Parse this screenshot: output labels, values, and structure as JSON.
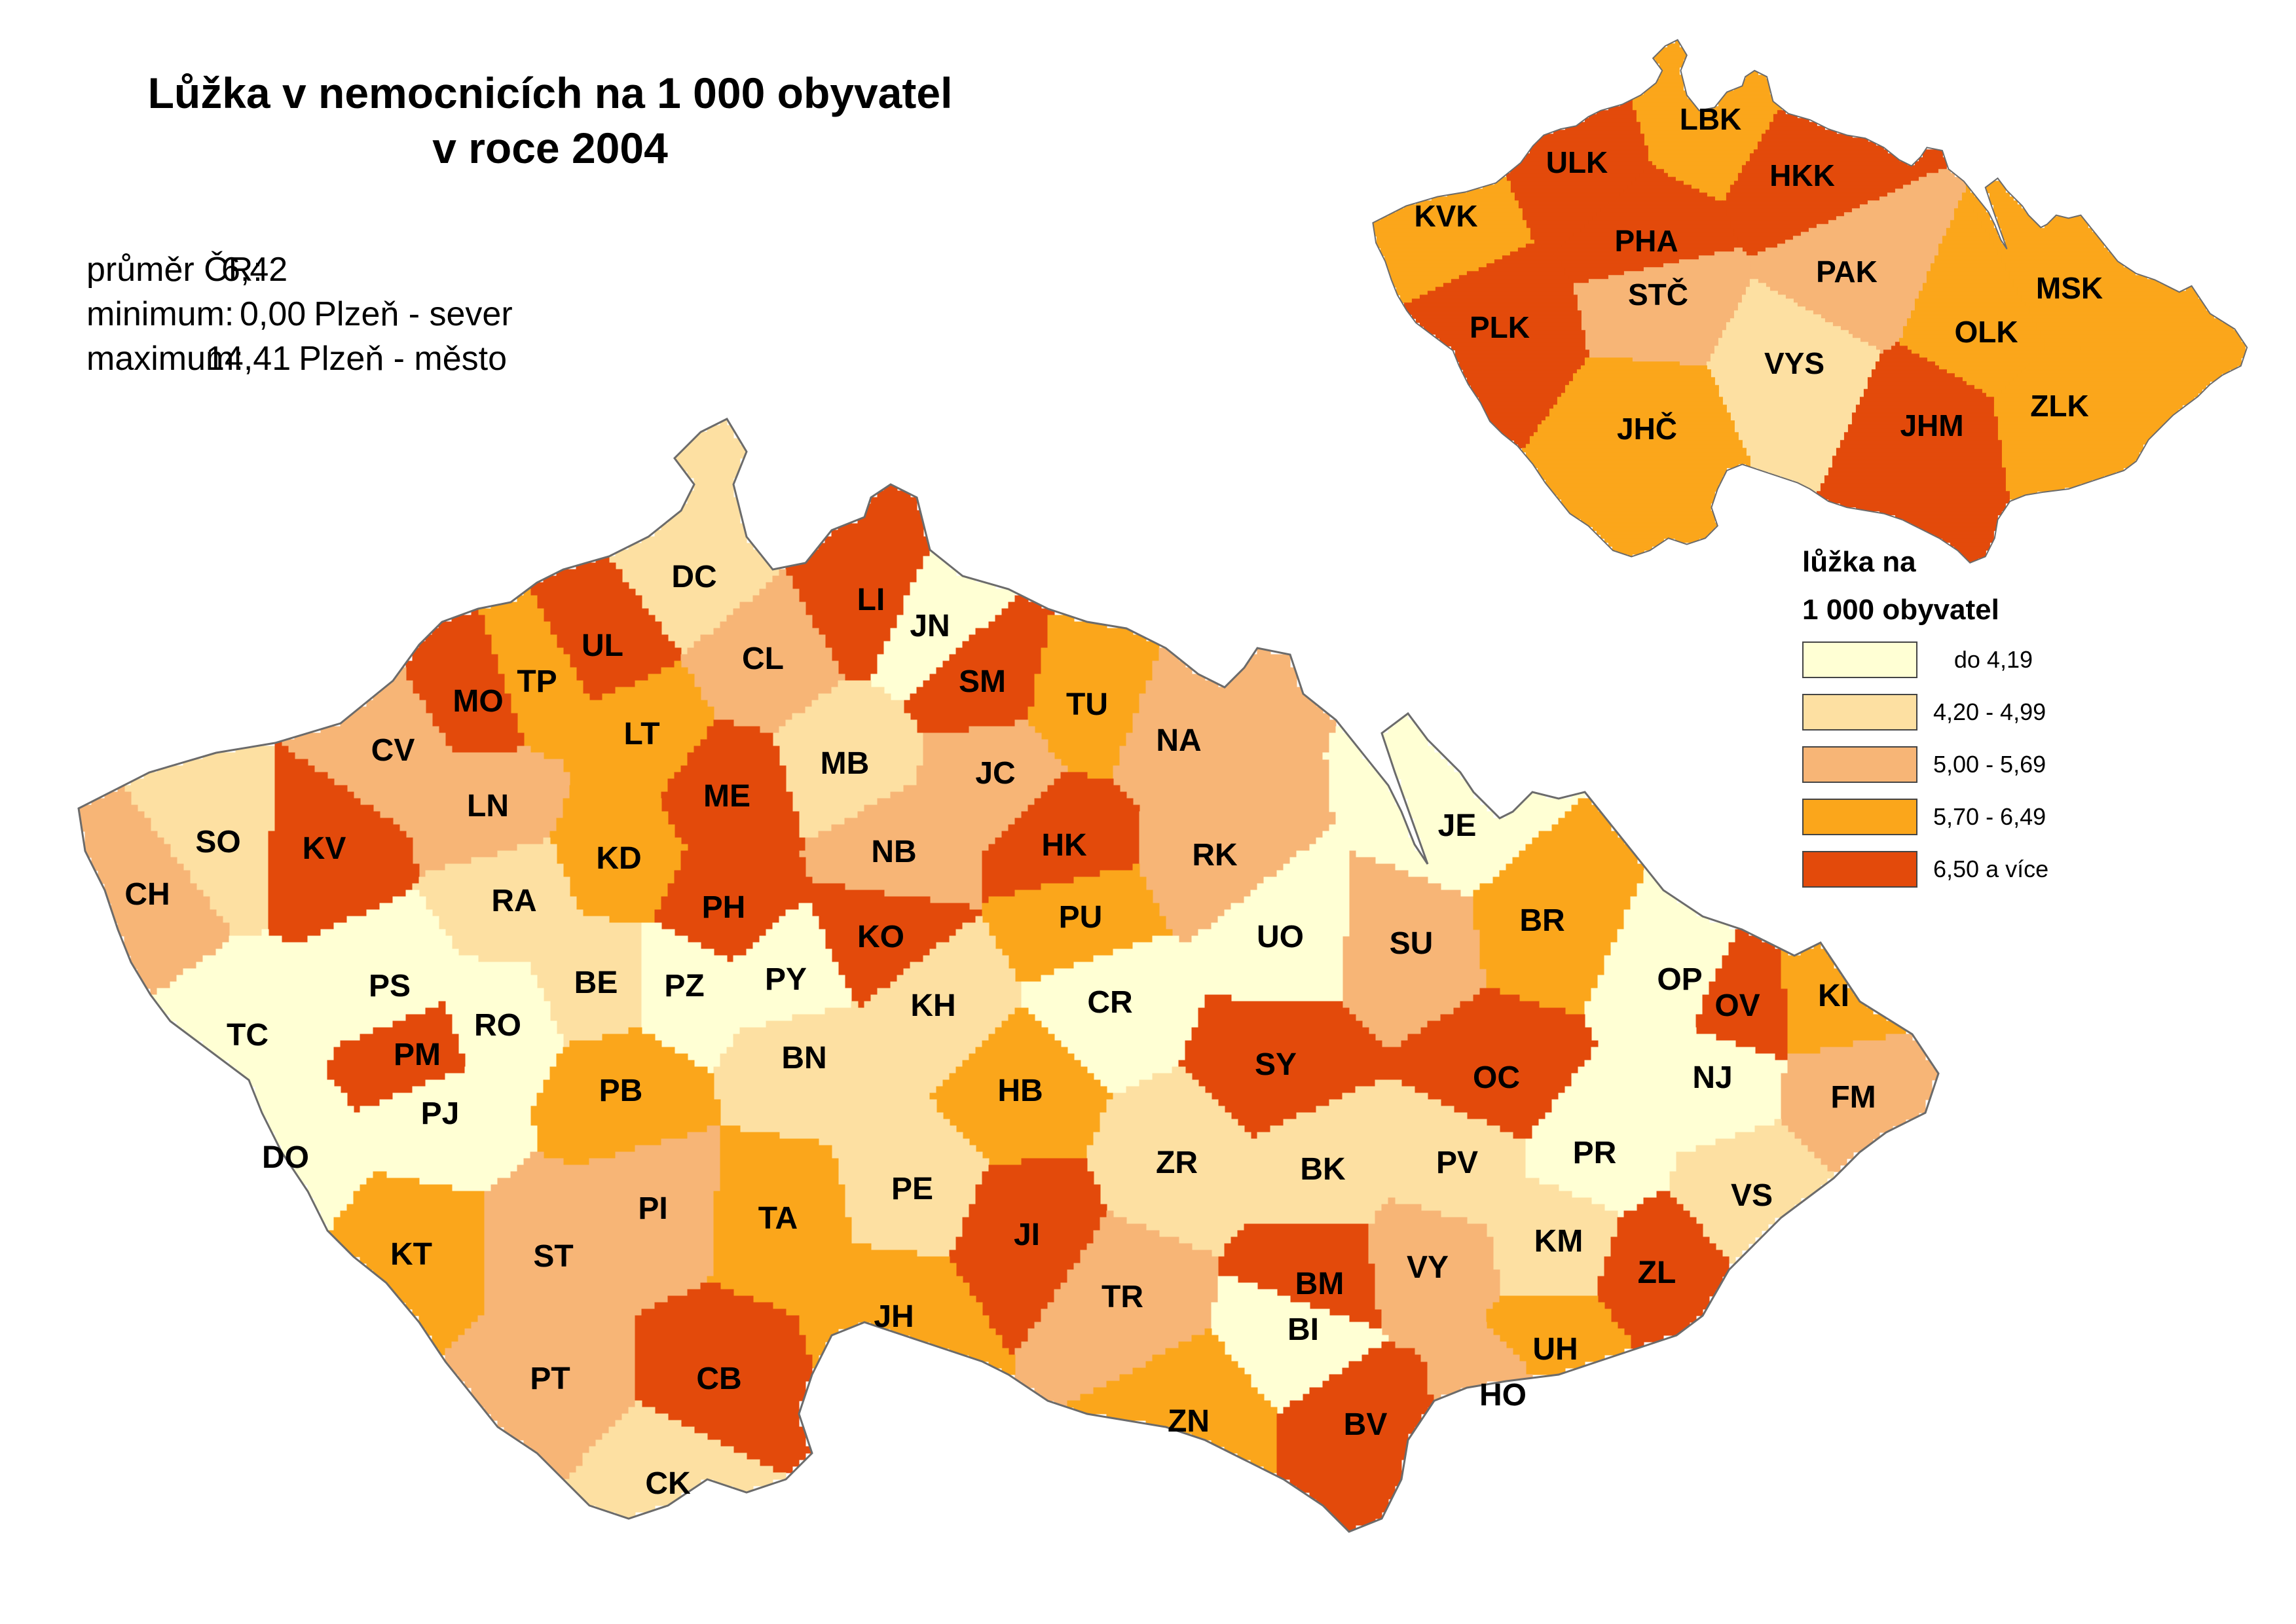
{
  "title": {
    "line1": "Lůžka v nemocnicích na 1 000 obyvatel",
    "line2": "v roce 2004"
  },
  "stats": {
    "mean": {
      "label": "průměr ČR:",
      "value": "6,42",
      "extra": ""
    },
    "min": {
      "label": "minimum:",
      "value": "0,00",
      "extra": "Plzeň - sever"
    },
    "max": {
      "label": "maximum:",
      "value": "14,41",
      "extra": "Plzeň - město"
    }
  },
  "legend": {
    "title_line1": "lůžka na",
    "title_line2": "1 000 obyvatel",
    "classes": [
      {
        "label": "do 4,19",
        "color": "#ffffd4",
        "align": "right"
      },
      {
        "label": "4,20 - 4,99",
        "color": "#fde0a2",
        "align": "left"
      },
      {
        "label": "5,00 - 5,69",
        "color": "#f7b576",
        "align": "left"
      },
      {
        "label": "5,70 - 6,49",
        "color": "#fba61b",
        "align": "left"
      },
      {
        "label": "6,50 a více",
        "color": "#e34a0b",
        "align": "left"
      }
    ]
  },
  "districts": [
    {
      "code": "DC",
      "cls": 1
    },
    {
      "code": "LI",
      "cls": 4
    },
    {
      "code": "JN",
      "cls": 0
    },
    {
      "code": "UL",
      "cls": 4
    },
    {
      "code": "CL",
      "cls": 2
    },
    {
      "code": "TP",
      "cls": 3
    },
    {
      "code": "SM",
      "cls": 4
    },
    {
      "code": "TU",
      "cls": 3
    },
    {
      "code": "MO",
      "cls": 4
    },
    {
      "code": "LT",
      "cls": 3
    },
    {
      "code": "CV",
      "cls": 2
    },
    {
      "code": "NA",
      "cls": 2
    },
    {
      "code": "MB",
      "cls": 1
    },
    {
      "code": "JC",
      "cls": 2
    },
    {
      "code": "ME",
      "cls": 4
    },
    {
      "code": "LN",
      "cls": 2
    },
    {
      "code": "SO",
      "cls": 1
    },
    {
      "code": "KV",
      "cls": 4
    },
    {
      "code": "KD",
      "cls": 3
    },
    {
      "code": "NB",
      "cls": 2
    },
    {
      "code": "HK",
      "cls": 4
    },
    {
      "code": "RK",
      "cls": 2
    },
    {
      "code": "JE",
      "cls": 0
    },
    {
      "code": "CH",
      "cls": 2
    },
    {
      "code": "RA",
      "cls": 1
    },
    {
      "code": "PH",
      "cls": 4
    },
    {
      "code": "KO",
      "cls": 4
    },
    {
      "code": "PU",
      "cls": 3
    },
    {
      "code": "SU",
      "cls": 2
    },
    {
      "code": "BR",
      "cls": 3
    },
    {
      "code": "UO",
      "cls": 0
    },
    {
      "code": "PS",
      "cls": 0
    },
    {
      "code": "BE",
      "cls": 1
    },
    {
      "code": "PZ",
      "cls": 0
    },
    {
      "code": "PY",
      "cls": 0
    },
    {
      "code": "OP",
      "cls": 0
    },
    {
      "code": "TC",
      "cls": 0
    },
    {
      "code": "RO",
      "cls": 0
    },
    {
      "code": "KH",
      "cls": 1
    },
    {
      "code": "CR",
      "cls": 0
    },
    {
      "code": "OV",
      "cls": 4
    },
    {
      "code": "KI",
      "cls": 3
    },
    {
      "code": "PM",
      "cls": 4
    },
    {
      "code": "BN",
      "cls": 1
    },
    {
      "code": "SY",
      "cls": 4
    },
    {
      "code": "OC",
      "cls": 4
    },
    {
      "code": "NJ",
      "cls": 0
    },
    {
      "code": "PB",
      "cls": 3
    },
    {
      "code": "HB",
      "cls": 3
    },
    {
      "code": "FM",
      "cls": 2
    },
    {
      "code": "PJ",
      "cls": 0
    },
    {
      "code": "ZR",
      "cls": 1
    },
    {
      "code": "BK",
      "cls": 1
    },
    {
      "code": "PV",
      "cls": 1
    },
    {
      "code": "PR",
      "cls": 0
    },
    {
      "code": "DO",
      "cls": 0
    },
    {
      "code": "PE",
      "cls": 1
    },
    {
      "code": "VS",
      "cls": 1
    },
    {
      "code": "PI",
      "cls": 2
    },
    {
      "code": "TA",
      "cls": 3
    },
    {
      "code": "JI",
      "cls": 4
    },
    {
      "code": "KT",
      "cls": 3
    },
    {
      "code": "ST",
      "cls": 2
    },
    {
      "code": "KM",
      "cls": 1
    },
    {
      "code": "BM",
      "cls": 4
    },
    {
      "code": "VY",
      "cls": 2
    },
    {
      "code": "ZL",
      "cls": 4
    },
    {
      "code": "TR",
      "cls": 2
    },
    {
      "code": "JH",
      "cls": 3
    },
    {
      "code": "BI",
      "cls": 0
    },
    {
      "code": "UH",
      "cls": 3
    },
    {
      "code": "PT",
      "cls": 2
    },
    {
      "code": "CB",
      "cls": 4
    },
    {
      "code": "ZN",
      "cls": 3
    },
    {
      "code": "BV",
      "cls": 4
    },
    {
      "code": "HO",
      "cls": 2
    },
    {
      "code": "CK",
      "cls": 1
    }
  ],
  "regions": [
    {
      "code": "LBK",
      "cls": 3
    },
    {
      "code": "ULK",
      "cls": 4
    },
    {
      "code": "HKK",
      "cls": 4
    },
    {
      "code": "KVK",
      "cls": 3
    },
    {
      "code": "PHA",
      "cls": 4
    },
    {
      "code": "STČ",
      "cls": 2
    },
    {
      "code": "PAK",
      "cls": 2
    },
    {
      "code": "MSK",
      "cls": 3
    },
    {
      "code": "PLK",
      "cls": 4
    },
    {
      "code": "OLK",
      "cls": 3
    },
    {
      "code": "VYS",
      "cls": 1
    },
    {
      "code": "ZLK",
      "cls": 3
    },
    {
      "code": "JHČ",
      "cls": 3
    },
    {
      "code": "JHM",
      "cls": 4
    }
  ]
}
